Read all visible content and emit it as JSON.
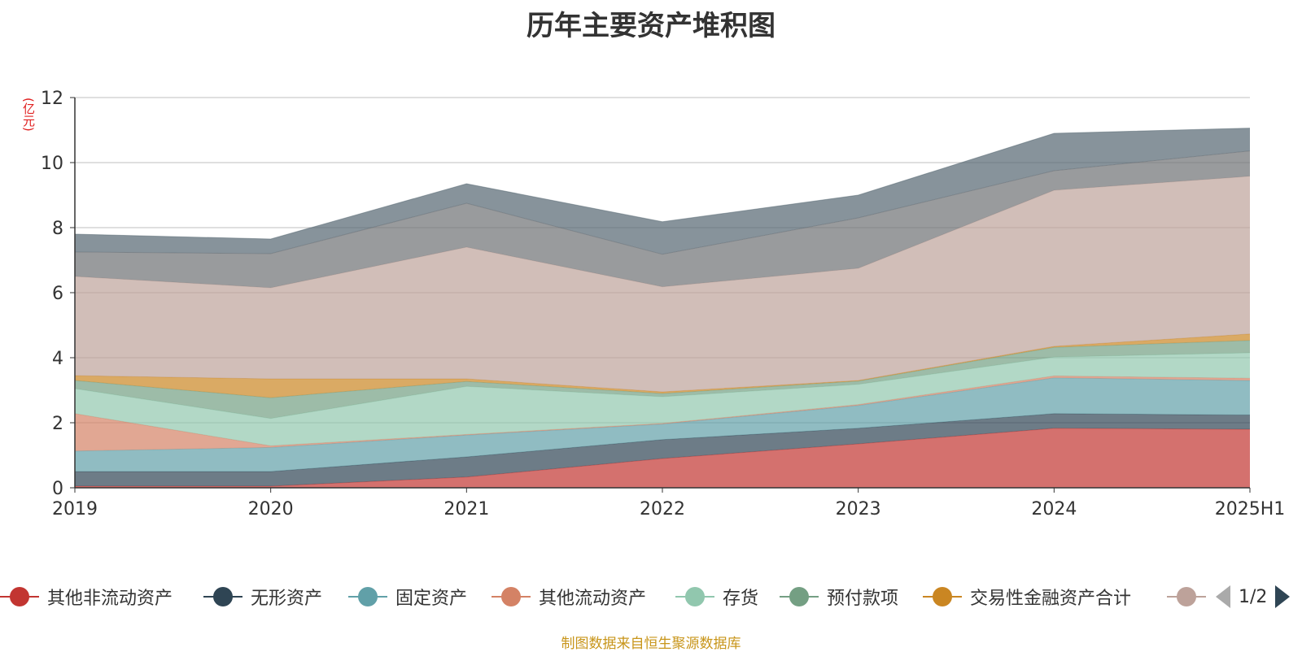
{
  "title": "历年主要资产堆积图",
  "unit": "(亿元)",
  "source": "制图数据来自恒生聚源数据库",
  "legend": {
    "items": [
      {
        "label": "其他非流动资产",
        "color": "#c23531"
      },
      {
        "label": "无形资产",
        "color": "#2f4554"
      },
      {
        "label": "固定资产",
        "color": "#61a0a8"
      },
      {
        "label": "其他流动资产",
        "color": "#d48265"
      },
      {
        "label": "存货",
        "color": "#91c7ae"
      },
      {
        "label": "预付款项",
        "color": "#749f83"
      },
      {
        "label": "交易性金融资产合计",
        "color": "#ca8622"
      },
      {
        "label": "",
        "color": "#bda29a"
      }
    ],
    "page": "1/2"
  },
  "chart_data": {
    "type": "area",
    "stacked": true,
    "categories": [
      "2019",
      "2020",
      "2021",
      "2022",
      "2023",
      "2024",
      "2025H1"
    ],
    "ylim": [
      0,
      12
    ],
    "yticks": [
      0,
      2,
      4,
      6,
      8,
      10,
      12
    ],
    "grid": true,
    "series": [
      {
        "name": "其他非流动资产",
        "color": "#c23531",
        "values": [
          0.05,
          0.05,
          0.33,
          0.9,
          1.35,
          1.83,
          1.8
        ]
      },
      {
        "name": "无形资产",
        "color": "#2f4554",
        "values": [
          0.45,
          0.45,
          0.62,
          0.58,
          0.48,
          0.45,
          0.44
        ]
      },
      {
        "name": "固定资产",
        "color": "#61a0a8",
        "values": [
          0.63,
          0.74,
          0.67,
          0.48,
          0.7,
          1.1,
          1.06
        ]
      },
      {
        "name": "其他流动资产",
        "color": "#d48265",
        "values": [
          1.15,
          0.05,
          0.02,
          0.02,
          0.03,
          0.06,
          0.07
        ]
      },
      {
        "name": "存货",
        "color": "#91c7ae",
        "values": [
          0.77,
          0.84,
          1.48,
          0.82,
          0.62,
          0.58,
          0.78
        ]
      },
      {
        "name": "预付款项",
        "color": "#749f83",
        "values": [
          0.25,
          0.64,
          0.15,
          0.1,
          0.1,
          0.3,
          0.38
        ]
      },
      {
        "name": "交易性金融资产合计",
        "color": "#ca8622",
        "values": [
          0.15,
          0.58,
          0.08,
          0.05,
          0.02,
          0.03,
          0.2
        ]
      },
      {
        "name": "",
        "color": "#bda29a",
        "values": [
          3.05,
          2.8,
          4.05,
          3.23,
          3.45,
          4.8,
          4.85
        ]
      },
      {
        "name": "",
        "color": "#6e7074",
        "values": [
          0.75,
          1.05,
          1.35,
          1.0,
          1.55,
          0.6,
          0.78
        ]
      },
      {
        "name": "",
        "color": "#546570",
        "values": [
          0.55,
          0.45,
          0.6,
          1.0,
          0.7,
          1.15,
          0.7
        ]
      }
    ]
  }
}
